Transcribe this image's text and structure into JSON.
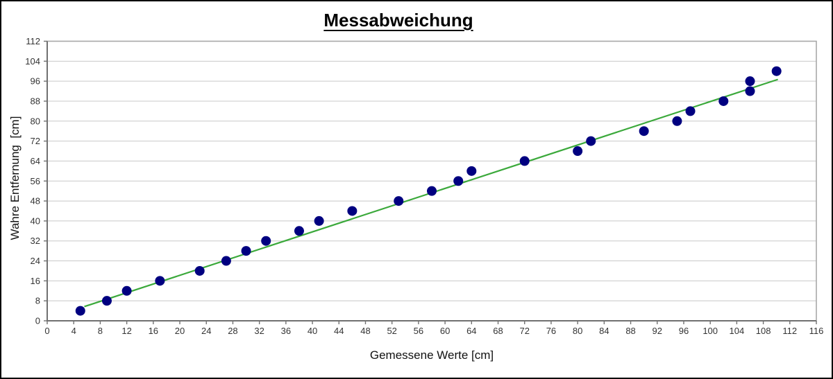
{
  "chart_data": {
    "type": "scatter",
    "title": "Messabweichung",
    "xlabel": "Gemessene Werte [cm]",
    "ylabel": "Wahre Entfernung  [cm]",
    "xlim": [
      0,
      116
    ],
    "ylim": [
      0,
      112
    ],
    "x_ticks": [
      0,
      4,
      8,
      12,
      16,
      20,
      24,
      28,
      32,
      36,
      40,
      44,
      48,
      52,
      56,
      60,
      64,
      68,
      72,
      76,
      80,
      84,
      88,
      92,
      96,
      100,
      104,
      108,
      112,
      116
    ],
    "y_ticks": [
      0,
      8,
      16,
      24,
      32,
      40,
      48,
      56,
      64,
      72,
      80,
      88,
      96,
      104,
      112
    ],
    "grid": "horizontal-only",
    "legend": "none",
    "series": [
      {
        "id": "measurements",
        "type": "scatter",
        "marker_color": "#000080",
        "points": [
          [
            5,
            4
          ],
          [
            9,
            8
          ],
          [
            12,
            12
          ],
          [
            17,
            16
          ],
          [
            23,
            20
          ],
          [
            27,
            24
          ],
          [
            30,
            28
          ],
          [
            33,
            32
          ],
          [
            38,
            36
          ],
          [
            41,
            40
          ],
          [
            46,
            44
          ],
          [
            53,
            48
          ],
          [
            58,
            52
          ],
          [
            62,
            56
          ],
          [
            64,
            60
          ],
          [
            72,
            64
          ],
          [
            80,
            68
          ],
          [
            82,
            72
          ],
          [
            90,
            76
          ],
          [
            95,
            80
          ],
          [
            97,
            84
          ],
          [
            102,
            88
          ],
          [
            106,
            92
          ],
          [
            106,
            96
          ],
          [
            110,
            100
          ]
        ]
      },
      {
        "id": "trendline",
        "type": "line",
        "line_color": "#3BA93B",
        "points": [
          [
            5.6,
            5.7
          ],
          [
            110.2,
            96.7
          ]
        ]
      }
    ]
  },
  "colors": {
    "marker": "#000080",
    "trendline": "#3BA93B",
    "gridline": "#C8C8C8",
    "axis_line": "#707070",
    "plot_border": "#A8A8A8",
    "tick_label": "#333333",
    "background": "#FFFFFF",
    "frame_border": "#000000"
  }
}
